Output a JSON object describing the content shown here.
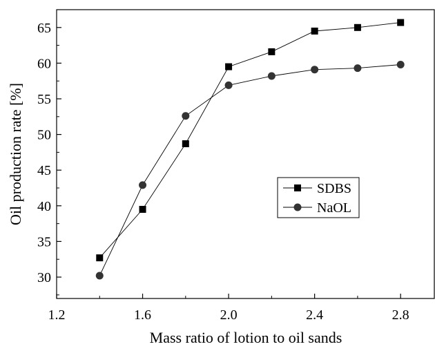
{
  "chart_data": {
    "type": "line",
    "title": "",
    "xlabel": "Mass ratio of lotion to oil sands",
    "ylabel": "Oil production rate [%]",
    "xlim": [
      1.2,
      2.96
    ],
    "ylim": [
      27,
      67.5
    ],
    "xticks": [
      1.2,
      1.6,
      2.0,
      2.4,
      2.8
    ],
    "xtick_labels": [
      "1.2",
      "1.6",
      "2.0",
      "2.4",
      "2.8"
    ],
    "yticks": [
      30,
      35,
      40,
      45,
      50,
      55,
      60,
      65
    ],
    "ytick_labels": [
      "30",
      "35",
      "40",
      "45",
      "50",
      "55",
      "60",
      "65"
    ],
    "grid": false,
    "legend_position": "center-right",
    "x": [
      1.4,
      1.6,
      1.8,
      2.0,
      2.2,
      2.4,
      2.6,
      2.8
    ],
    "series": [
      {
        "name": "SDBS",
        "marker": "square",
        "values": [
          32.7,
          39.5,
          48.7,
          59.5,
          61.6,
          64.5,
          65.0,
          65.7
        ]
      },
      {
        "name": "NaOL",
        "marker": "circle",
        "values": [
          30.2,
          42.9,
          52.6,
          56.9,
          58.2,
          59.1,
          59.3,
          59.8
        ]
      }
    ]
  }
}
